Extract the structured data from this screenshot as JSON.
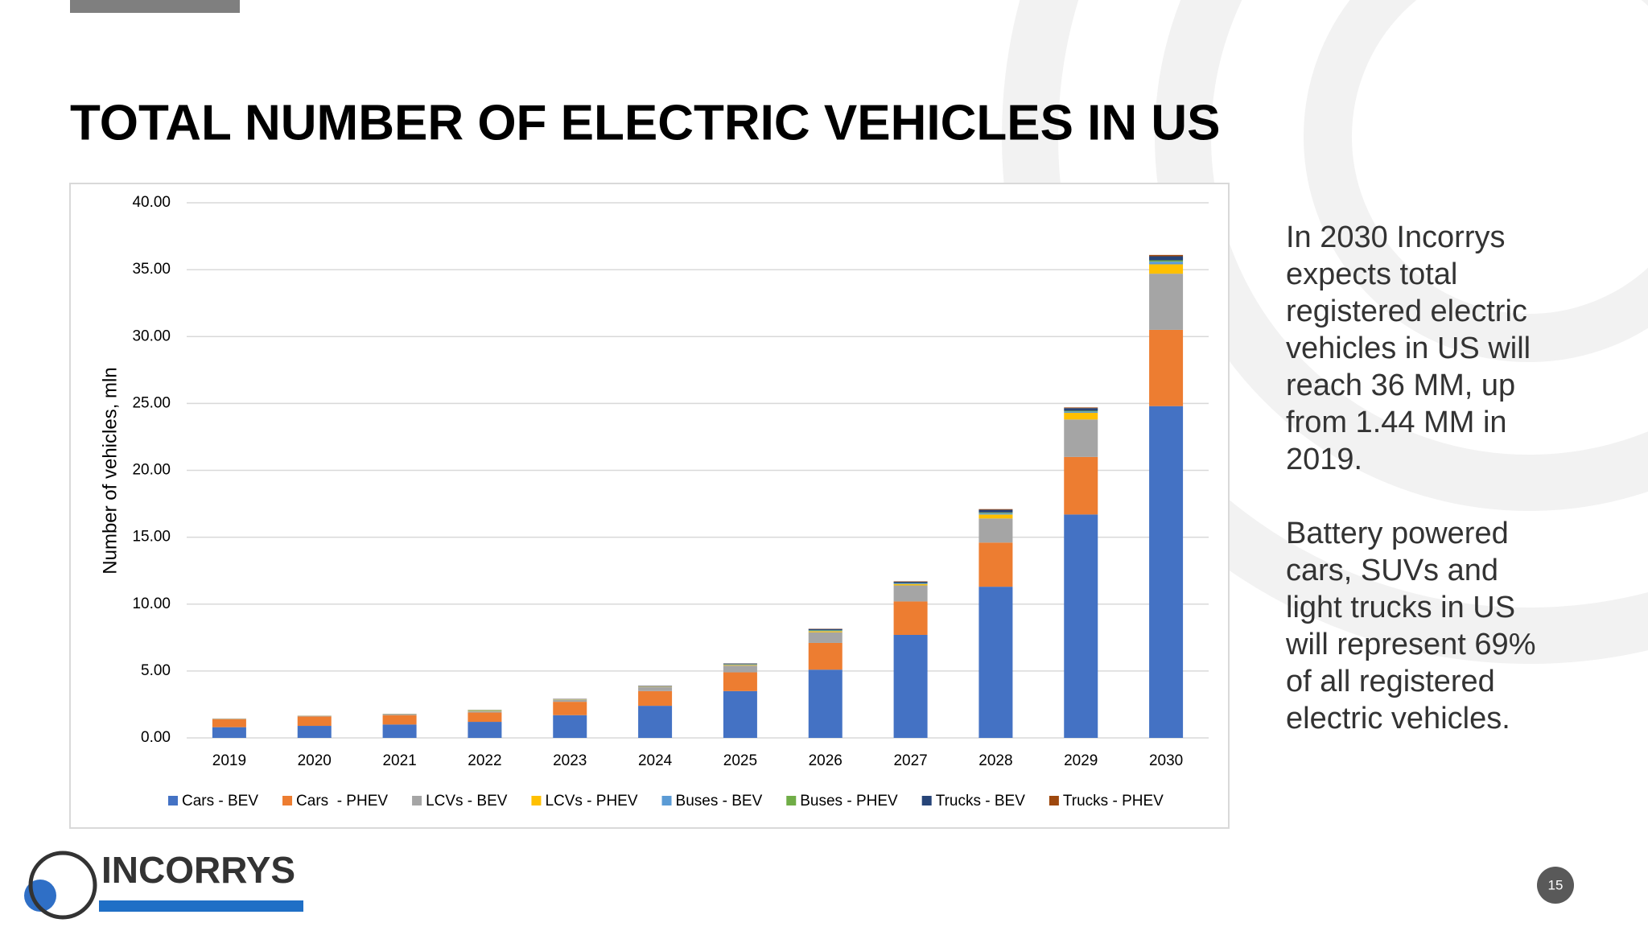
{
  "chart_data": {
    "type": "stacked-bar",
    "title": "TOTAL NUMBER OF ELECTRIC VEHICLES IN US",
    "y_label": "Number of vehicles, mln",
    "categories": [
      "2019",
      "2020",
      "2021",
      "2022",
      "2023",
      "2024",
      "2025",
      "2026",
      "2027",
      "2028",
      "2029",
      "2030"
    ],
    "series": [
      {
        "name": "Cars - BEV",
        "color": "#4472c4",
        "values": [
          0.8,
          0.9,
          1.0,
          1.2,
          1.7,
          2.4,
          3.5,
          5.1,
          7.7,
          11.3,
          16.7,
          24.8
        ]
      },
      {
        "name": "Cars  - PHEV",
        "color": "#ed7d31",
        "values": [
          0.6,
          0.7,
          0.7,
          0.7,
          1.0,
          1.1,
          1.4,
          2.0,
          2.5,
          3.3,
          4.3,
          5.7
        ]
      },
      {
        "name": "LCVs - BEV",
        "color": "#a5a5a5",
        "values": [
          0.02,
          0.03,
          0.05,
          0.1,
          0.15,
          0.3,
          0.5,
          0.8,
          1.2,
          1.8,
          2.8,
          4.2
        ]
      },
      {
        "name": "LCVs - PHEV",
        "color": "#ffc000",
        "values": [
          0.01,
          0.01,
          0.01,
          0.02,
          0.02,
          0.03,
          0.05,
          0.08,
          0.1,
          0.3,
          0.5,
          0.7
        ]
      },
      {
        "name": "Buses - BEV",
        "color": "#5b9bd5",
        "values": [
          0.005,
          0.005,
          0.01,
          0.01,
          0.01,
          0.02,
          0.04,
          0.05,
          0.05,
          0.1,
          0.1,
          0.2
        ]
      },
      {
        "name": "Buses - PHEV",
        "color": "#70ad47",
        "values": [
          0.005,
          0.005,
          0.01,
          0.04,
          0.01,
          0.01,
          0.02,
          0.03,
          0.02,
          0.05,
          0.05,
          0.1
        ]
      },
      {
        "name": "Trucks - BEV",
        "color": "#264478",
        "values": [
          0.005,
          0.005,
          0.01,
          0.01,
          0.02,
          0.03,
          0.05,
          0.08,
          0.1,
          0.2,
          0.2,
          0.3
        ]
      },
      {
        "name": "Trucks - PHEV",
        "color": "#9e480e",
        "values": [
          0.005,
          0.005,
          0.01,
          0.01,
          0.01,
          0.01,
          0.01,
          0.02,
          0.03,
          0.05,
          0.05,
          0.1
        ]
      }
    ],
    "ylim": [
      0,
      40
    ],
    "yticks": [
      {
        "value": 0,
        "label": "0.00"
      },
      {
        "value": 5,
        "label": "5.00"
      },
      {
        "value": 10,
        "label": "10.00"
      },
      {
        "value": 15,
        "label": "15.00"
      },
      {
        "value": 20,
        "label": "20.00"
      },
      {
        "value": 25,
        "label": "25.00"
      },
      {
        "value": 30,
        "label": "30.00"
      },
      {
        "value": 35,
        "label": "35.00"
      },
      {
        "value": 40,
        "label": "40.00"
      }
    ],
    "grid": true,
    "legend": "bottom"
  },
  "sidebar": {
    "paragraphs": [
      [
        "In 2030 Incorrys",
        "expects total",
        "registered electric",
        "vehicles in US will",
        "reach 36 MM, up",
        "from 1.44 MM in",
        "2019."
      ],
      [
        "Battery powered",
        "cars, SUVs and",
        "light trucks in US",
        "will represent 69%",
        "of all registered",
        "electric vehicles."
      ]
    ]
  },
  "logo": "INCORRYS",
  "page_number": "15"
}
